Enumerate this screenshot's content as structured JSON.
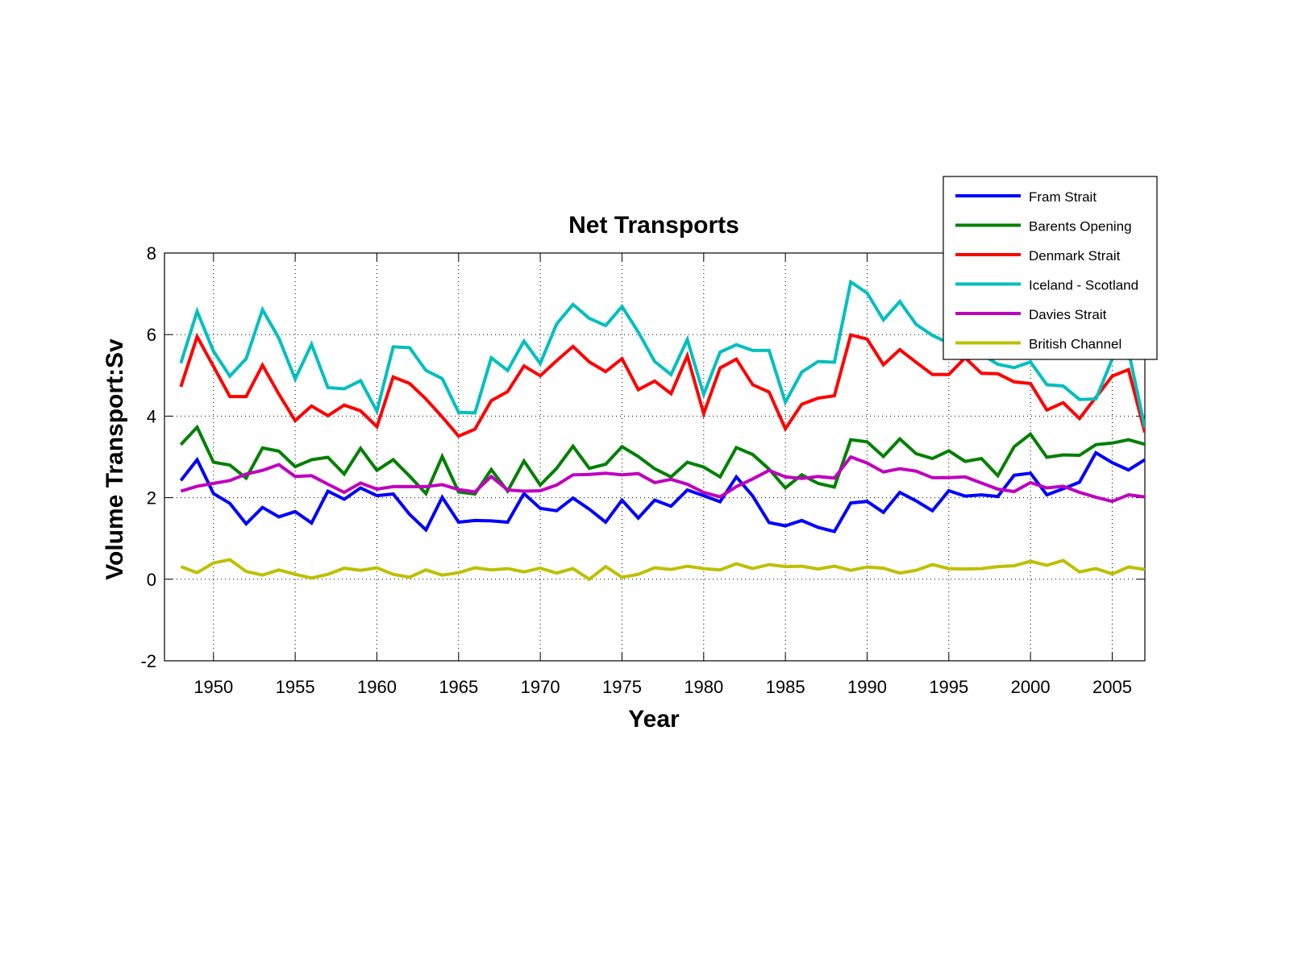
{
  "chart_data": {
    "type": "line",
    "title": "Net Transports",
    "xlabel": "Year",
    "ylabel": "Volume Transport:Sv",
    "xlim": [
      1947,
      2007
    ],
    "ylim": [
      -2,
      8
    ],
    "xticks": [
      1950,
      1955,
      1960,
      1965,
      1970,
      1975,
      1980,
      1985,
      1990,
      1995,
      2000,
      2005
    ],
    "yticks": [
      -2,
      0,
      2,
      4,
      6,
      8
    ],
    "xtick_labels": [
      "1950",
      "1955",
      "1960",
      "1965",
      "1970",
      "1975",
      "1980",
      "1985",
      "1990",
      "1995",
      "2000",
      "2005"
    ],
    "ytick_labels": [
      "-2",
      "0",
      "2",
      "4",
      "6",
      "8"
    ],
    "grid": true,
    "legend_position": "top-right",
    "x": [
      1948,
      1949,
      1950,
      1951,
      1952,
      1953,
      1954,
      1955,
      1956,
      1957,
      1958,
      1959,
      1960,
      1961,
      1962,
      1963,
      1964,
      1965,
      1966,
      1967,
      1968,
      1969,
      1970,
      1971,
      1972,
      1973,
      1974,
      1975,
      1976,
      1977,
      1978,
      1979,
      1980,
      1981,
      1982,
      1983,
      1984,
      1985,
      1986,
      1987,
      1988,
      1989,
      1990,
      1991,
      1992,
      1993,
      1994,
      1995,
      1996,
      1997,
      1998,
      1999,
      2000,
      2001,
      2002,
      2003,
      2004,
      2005,
      2006,
      2007
    ],
    "series": [
      {
        "name": "Fram Strait",
        "color": "#0000ff",
        "values": [
          2.42,
          2.93,
          2.1,
          1.86,
          1.36,
          1.76,
          1.53,
          1.66,
          1.38,
          2.16,
          1.96,
          2.24,
          2.05,
          2.09,
          1.59,
          1.21,
          2.01,
          1.4,
          1.44,
          1.43,
          1.4,
          2.1,
          1.74,
          1.68,
          1.99,
          1.72,
          1.4,
          1.94,
          1.5,
          1.94,
          1.79,
          2.19,
          2.05,
          1.9,
          2.51,
          2.04,
          1.39,
          1.31,
          1.44,
          1.27,
          1.17,
          1.87,
          1.91,
          1.64,
          2.13,
          1.92,
          1.68,
          2.17,
          2.04,
          2.07,
          2.03,
          2.55,
          2.6,
          2.07,
          2.22,
          2.38,
          3.1,
          2.86,
          2.68,
          2.93
        ]
      },
      {
        "name": "Barents Opening",
        "color": "#008000",
        "values": [
          3.3,
          3.73,
          2.87,
          2.8,
          2.48,
          3.22,
          3.14,
          2.76,
          2.93,
          2.99,
          2.58,
          3.21,
          2.67,
          2.93,
          2.53,
          2.1,
          3.01,
          2.14,
          2.09,
          2.69,
          2.16,
          2.9,
          2.31,
          2.72,
          3.26,
          2.72,
          2.82,
          3.25,
          3.01,
          2.71,
          2.51,
          2.87,
          2.75,
          2.51,
          3.23,
          3.06,
          2.7,
          2.24,
          2.56,
          2.35,
          2.26,
          3.42,
          3.37,
          3.01,
          3.44,
          3.08,
          2.96,
          3.15,
          2.89,
          2.96,
          2.54,
          3.25,
          3.56,
          2.99,
          3.05,
          3.04,
          3.3,
          3.34,
          3.42,
          3.31
        ]
      },
      {
        "name": "Denmark Strait",
        "color": "#ff0000",
        "values": [
          4.72,
          5.95,
          5.22,
          4.48,
          4.48,
          5.25,
          4.54,
          3.89,
          4.25,
          4.01,
          4.27,
          4.13,
          3.74,
          4.96,
          4.8,
          4.42,
          3.98,
          3.51,
          3.68,
          4.38,
          4.6,
          5.23,
          4.99,
          5.36,
          5.71,
          5.33,
          5.09,
          5.41,
          4.65,
          4.86,
          4.55,
          5.48,
          4.06,
          5.18,
          5.4,
          4.77,
          4.59,
          3.69,
          4.29,
          4.44,
          4.5,
          5.99,
          5.89,
          5.26,
          5.63,
          5.32,
          5.02,
          5.02,
          5.43,
          5.05,
          5.04,
          4.84,
          4.8,
          4.15,
          4.33,
          3.94,
          4.46,
          4.98,
          5.14,
          3.6
        ]
      },
      {
        "name": "Iceland - Scotland",
        "color": "#00bfbf",
        "values": [
          5.3,
          6.57,
          5.59,
          4.98,
          5.41,
          6.61,
          5.91,
          4.91,
          5.76,
          4.7,
          4.67,
          4.87,
          4.12,
          5.7,
          5.68,
          5.12,
          4.92,
          4.09,
          4.08,
          5.43,
          5.12,
          5.84,
          5.29,
          6.26,
          6.74,
          6.4,
          6.22,
          6.69,
          6.06,
          5.34,
          5.02,
          5.88,
          4.53,
          5.57,
          5.75,
          5.61,
          5.61,
          4.34,
          5.08,
          5.34,
          5.32,
          7.29,
          7.02,
          6.36,
          6.81,
          6.25,
          5.98,
          5.79,
          5.64,
          5.52,
          5.27,
          5.19,
          5.33,
          4.77,
          4.74,
          4.41,
          4.42,
          5.4,
          5.6,
          3.72
        ]
      },
      {
        "name": "Davies Strait",
        "color": "#bf00bf",
        "values": [
          2.16,
          2.28,
          2.35,
          2.42,
          2.58,
          2.67,
          2.81,
          2.52,
          2.54,
          2.33,
          2.13,
          2.36,
          2.21,
          2.27,
          2.27,
          2.27,
          2.32,
          2.2,
          2.14,
          2.52,
          2.19,
          2.16,
          2.17,
          2.31,
          2.56,
          2.57,
          2.6,
          2.56,
          2.59,
          2.37,
          2.45,
          2.33,
          2.13,
          2.02,
          2.27,
          2.46,
          2.67,
          2.51,
          2.47,
          2.52,
          2.48,
          3.0,
          2.85,
          2.63,
          2.71,
          2.65,
          2.49,
          2.49,
          2.51,
          2.36,
          2.21,
          2.15,
          2.37,
          2.24,
          2.28,
          2.13,
          2.01,
          1.91,
          2.07,
          2.02
        ]
      },
      {
        "name": "British Channel",
        "color": "#bfbf00",
        "values": [
          0.31,
          0.16,
          0.4,
          0.48,
          0.19,
          0.1,
          0.23,
          0.12,
          0.03,
          0.12,
          0.27,
          0.22,
          0.28,
          0.12,
          0.05,
          0.23,
          0.1,
          0.16,
          0.28,
          0.23,
          0.26,
          0.18,
          0.27,
          0.15,
          0.26,
          0.0,
          0.31,
          0.05,
          0.12,
          0.28,
          0.24,
          0.32,
          0.26,
          0.23,
          0.38,
          0.26,
          0.36,
          0.31,
          0.32,
          0.25,
          0.32,
          0.22,
          0.3,
          0.27,
          0.15,
          0.22,
          0.36,
          0.26,
          0.25,
          0.26,
          0.31,
          0.33,
          0.44,
          0.34,
          0.46,
          0.18,
          0.26,
          0.13,
          0.3,
          0.24
        ]
      }
    ]
  }
}
